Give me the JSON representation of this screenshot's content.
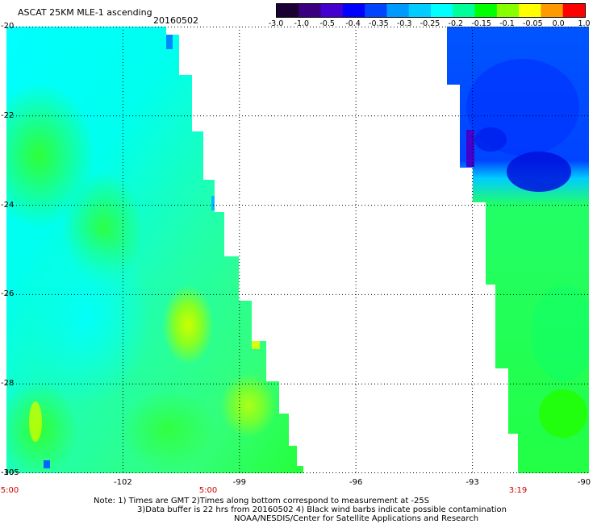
{
  "title": "ASCAT 25KM MLE-1 ascending",
  "date": "20160502",
  "colorbar": {
    "labels": [
      "-3.0",
      "-1.0",
      "-0.5",
      "-0.4",
      "-0.35",
      "-0.3",
      "-0.25",
      "-0.2",
      "-0.15",
      "-0.1",
      "-0.05",
      "0.0",
      "1.0"
    ],
    "colors": [
      "#1a0033",
      "#3a0080",
      "#4400cc",
      "#0000ff",
      "#0044ff",
      "#0099ff",
      "#00ccff",
      "#00ffff",
      "#00ff99",
      "#00ff00",
      "#88ff00",
      "#ffff00",
      "#ff9900",
      "#ff0000"
    ]
  },
  "x_axis": {
    "labels": [
      "-102",
      "-99",
      "-96",
      "-93",
      "-90"
    ],
    "time_labels": [
      "5:00",
      "5:00",
      "3:19"
    ]
  },
  "y_axis": {
    "labels": [
      "-20",
      "-22",
      "-24",
      "-26",
      "-28",
      "-30"
    ]
  },
  "corner_label": "-105",
  "notes": [
    "Note: 1) Times are GMT 2)Times along bottom correspond to measurement at -25S",
    "3)Data buffer is 22 hrs from 20160502 4) Black wind barbs indicate possible contamination",
    "NOAA/NESDIS/Center for Satellite Applications and Research"
  ],
  "map": {
    "lon_range": [
      -105,
      -90
    ],
    "lat_range": [
      -30,
      -20
    ],
    "grid_lons": [
      -102,
      -99,
      -96,
      -93
    ],
    "grid_lats": [
      -22,
      -24,
      -26,
      -28
    ],
    "swath_colors": {
      "cyan": "#00ffff",
      "light_green": "#33ff88",
      "green": "#22ff22",
      "yellow_green": "#aaff00",
      "yellow": "#eeff00",
      "blue": "#0055ff",
      "dark_blue": "#0022ee",
      "violet": "#4400cc",
      "light_blue": "#00aaff"
    }
  }
}
